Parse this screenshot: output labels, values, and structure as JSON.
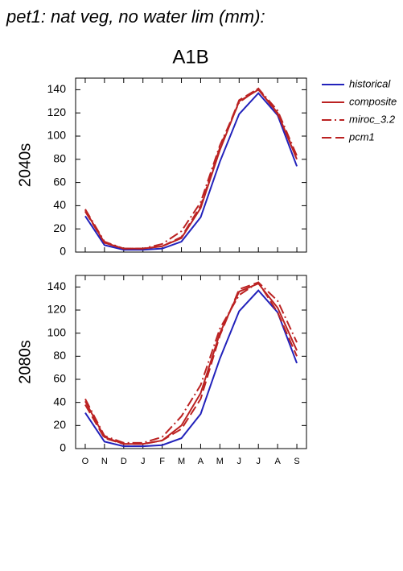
{
  "title": "pet1: nat veg, no water lim (mm):",
  "subtitle": "A1B",
  "chart_data": [
    {
      "type": "line",
      "ylabel": "2040s",
      "ylim": [
        0,
        150
      ],
      "yticks": [
        0,
        20,
        40,
        60,
        80,
        100,
        120,
        140
      ],
      "series": [
        {
          "name": "historical",
          "color": "#2222bb",
          "style": "solid",
          "values": [
            31,
            6,
            2,
            2,
            3,
            9,
            30,
            78,
            119,
            137,
            118,
            74
          ]
        },
        {
          "name": "composite",
          "color": "#bb2222",
          "style": "solid",
          "values": [
            36,
            8,
            3,
            3,
            5,
            12,
            38,
            88,
            130,
            140,
            120,
            80
          ]
        },
        {
          "name": "miroc_3.2",
          "color": "#bb2222",
          "style": "dashdot",
          "values": [
            37,
            9,
            3,
            3,
            7,
            18,
            43,
            92,
            129,
            141,
            122,
            83
          ]
        },
        {
          "name": "pcm1",
          "color": "#bb2222",
          "style": "dash",
          "values": [
            35,
            8,
            3,
            3,
            5,
            13,
            40,
            90,
            131,
            141,
            119,
            82
          ]
        }
      ]
    },
    {
      "type": "line",
      "ylabel": "2080s",
      "ylim": [
        0,
        150
      ],
      "yticks": [
        0,
        20,
        40,
        60,
        80,
        100,
        120,
        140
      ],
      "categories": [
        "O",
        "N",
        "D",
        "J",
        "F",
        "M",
        "A",
        "M",
        "J",
        "J",
        "A",
        "S"
      ],
      "series": [
        {
          "name": "historical",
          "color": "#2222bb",
          "style": "solid",
          "values": [
            31,
            6,
            2,
            2,
            3,
            9,
            30,
            78,
            119,
            137,
            118,
            74
          ]
        },
        {
          "name": "composite",
          "color": "#bb2222",
          "style": "solid",
          "values": [
            41,
            10,
            4,
            4,
            7,
            20,
            48,
            100,
            136,
            143,
            122,
            85
          ]
        },
        {
          "name": "miroc_3.2",
          "color": "#bb2222",
          "style": "dashdot",
          "values": [
            43,
            11,
            5,
            5,
            10,
            28,
            55,
            104,
            133,
            144,
            128,
            92
          ]
        },
        {
          "name": "pcm1",
          "color": "#bb2222",
          "style": "dash",
          "values": [
            38,
            9,
            4,
            4,
            7,
            17,
            43,
            98,
            138,
            144,
            118,
            80
          ]
        }
      ]
    }
  ]
}
